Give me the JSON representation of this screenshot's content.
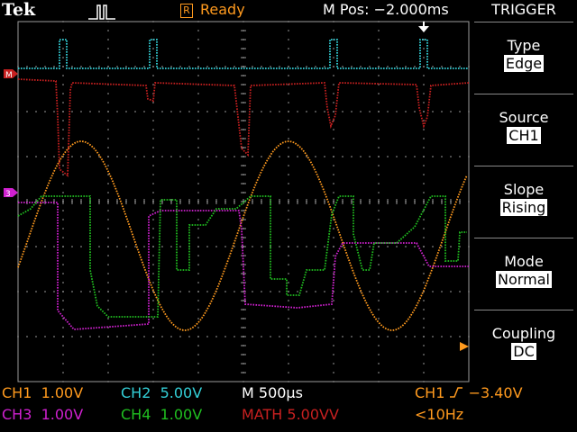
{
  "header": {
    "brand": "Tek",
    "acquisition_status": "Ready",
    "status_icon_letter": "R",
    "m_pos": "M Pos: −2.000ms"
  },
  "menu": {
    "title": "TRIGGER",
    "items": [
      {
        "label": "Type",
        "value": "Edge"
      },
      {
        "label": "Source",
        "value": "CH1"
      },
      {
        "label": "Slope",
        "value": "Rising"
      },
      {
        "label": "Mode",
        "value": "Normal"
      },
      {
        "label": "Coupling",
        "value": "DC"
      }
    ]
  },
  "channels": {
    "ch1": {
      "name": "CH1",
      "scale": "1.00V"
    },
    "ch2": {
      "name": "CH2",
      "scale": "5.00V"
    },
    "ch3": {
      "name": "CH3",
      "scale": "1.00V"
    },
    "ch4": {
      "name": "CH4",
      "scale": "1.00V"
    },
    "math": {
      "name": "MATH",
      "scale": "5.00VV"
    }
  },
  "timebase": "M 500µs",
  "trigger_readout": {
    "source": "CH1",
    "level": "−3.40V",
    "frequency": "<10Hz"
  },
  "colors": {
    "ch1": "#ff9a1e",
    "ch2": "#33d0d8",
    "ch3": "#d020d0",
    "ch4": "#20c020",
    "math": "#c82020",
    "grid": "#9a9a9a",
    "background": "#000000"
  }
}
